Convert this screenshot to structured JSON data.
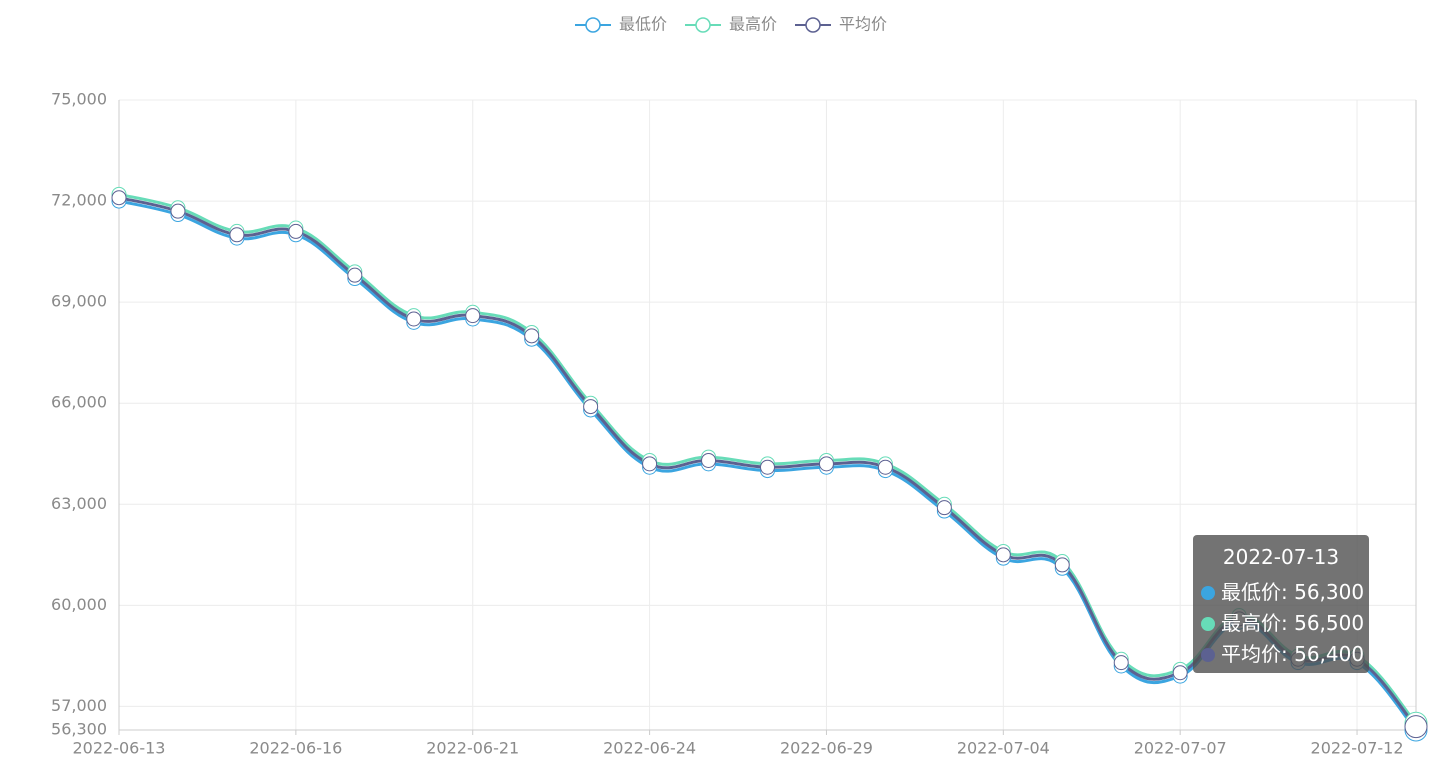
{
  "chart_data": {
    "type": "line",
    "categories": [
      "2022-06-13",
      null,
      null,
      "2022-06-16",
      null,
      null,
      "2022-06-21",
      null,
      null,
      "2022-06-24",
      null,
      null,
      "2022-06-29",
      null,
      null,
      "2022-07-04",
      null,
      null,
      "2022-07-07",
      null,
      null,
      "2022-07-12",
      null
    ],
    "series": [
      {
        "name": "最低价",
        "color": "#3ba5e0",
        "values": [
          72000,
          71600,
          70900,
          71000,
          69700,
          68400,
          68500,
          67900,
          65800,
          64100,
          64200,
          64000,
          64100,
          64000,
          62800,
          61400,
          61100,
          58200,
          57900,
          59500,
          58300,
          58300,
          56300
        ]
      },
      {
        "name": "最高价",
        "color": "#67dcb8",
        "values": [
          72200,
          71800,
          71100,
          71200,
          69900,
          68600,
          68700,
          68100,
          66000,
          64300,
          64400,
          64200,
          64300,
          64200,
          63000,
          61600,
          61300,
          58400,
          58100,
          59700,
          58500,
          58500,
          56500
        ]
      },
      {
        "name": "平均价",
        "color": "#5c6191",
        "values": [
          72100,
          71700,
          71000,
          71100,
          69800,
          68500,
          68600,
          68000,
          65900,
          64200,
          64300,
          64100,
          64200,
          64100,
          62900,
          61500,
          61200,
          58300,
          58000,
          59600,
          58400,
          58400,
          56400
        ]
      }
    ],
    "ylim": [
      56300,
      75000
    ],
    "yticks": [
      {
        "value": 56300,
        "label": "56,300"
      },
      {
        "value": 57000,
        "label": "57,000"
      },
      {
        "value": 60000,
        "label": "60,000"
      },
      {
        "value": 63000,
        "label": "63,000"
      },
      {
        "value": 66000,
        "label": "66,000"
      },
      {
        "value": 69000,
        "label": "69,000"
      },
      {
        "value": 72000,
        "label": "72,000"
      },
      {
        "value": 75000,
        "label": "75,000"
      }
    ],
    "grid": true,
    "smooth": true,
    "legend": "top",
    "tooltip": {
      "title": "2022-07-13",
      "rows": [
        "最低价: 56,300",
        "最高价: 56,500",
        "平均价: 56,400"
      ]
    }
  }
}
